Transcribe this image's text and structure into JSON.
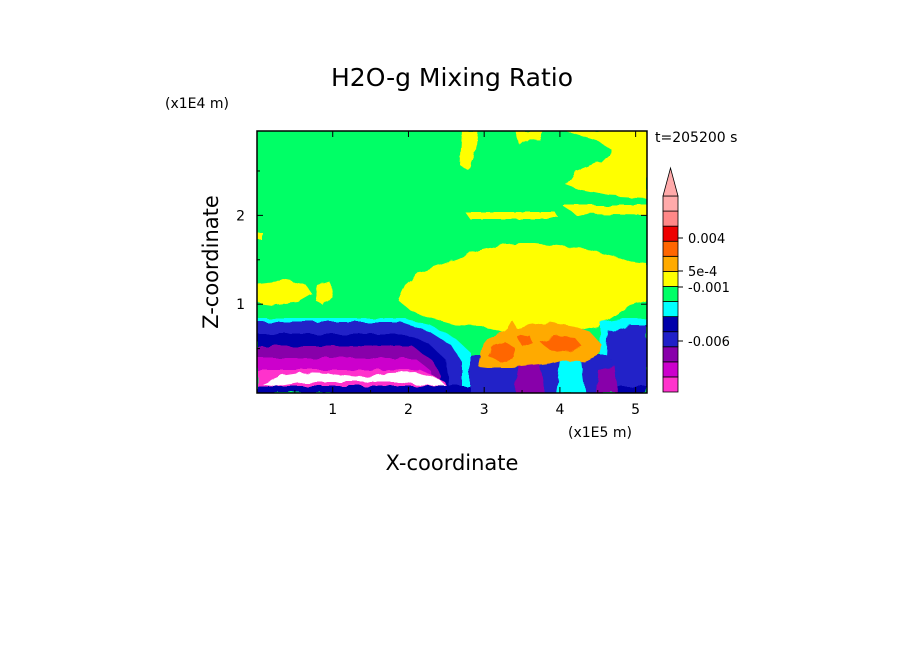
{
  "chart_data": {
    "type": "heatmap",
    "title": "H2O-g Mixing Ratio",
    "xlabel": "X-coordinate",
    "ylabel": "Z-coordinate",
    "x_unit": "(x1E5 m)",
    "y_unit": "(x1E4 m)",
    "time_label": "t=205200 s",
    "x_ticks": [
      "1",
      "2",
      "3",
      "4",
      "5"
    ],
    "y_ticks": [
      "1",
      "2"
    ],
    "xlim": [
      0,
      5.15
    ],
    "ylim": [
      0,
      2.95
    ],
    "colorbar": {
      "labels": [
        "0.004",
        "5e-4",
        "-0.001",
        "-0.006"
      ],
      "colors": [
        "#ff33cc",
        "#cc00cc",
        "#8800aa",
        "#2020c8",
        "#0000aa",
        "#00ffff",
        "#00ff66",
        "#ffff00",
        "#ffaa00",
        "#ff6600",
        "#ee0000",
        "#ff8888",
        "#ffaaaa"
      ]
    }
  }
}
